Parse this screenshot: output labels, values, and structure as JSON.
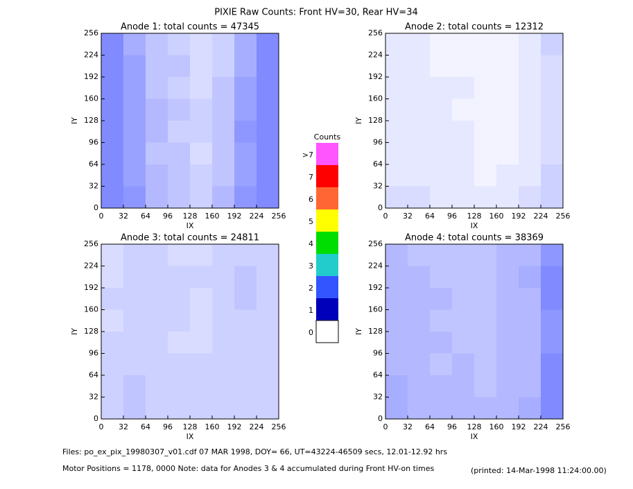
{
  "title": "PIXIE Raw Counts:  Front HV=30, Rear HV=34",
  "chart_data": [
    {
      "type": "heatmap",
      "title": "Anode 1: total counts = 47345",
      "xlabel": "IX",
      "ylabel": "IY",
      "xlim": [
        0,
        256
      ],
      "ylim": [
        0,
        256
      ],
      "xticks": [
        0,
        32,
        64,
        96,
        128,
        160,
        192,
        224,
        256
      ],
      "yticks": [
        0,
        32,
        64,
        96,
        128,
        160,
        192,
        224,
        256
      ],
      "color": "#1a2cff",
      "grid": [
        [
          1.3,
          0.9,
          0.6,
          0.5,
          0.4,
          0.6,
          0.9,
          1.2
        ],
        [
          1.3,
          0.8,
          0.6,
          0.5,
          0.4,
          0.5,
          0.8,
          1.3
        ],
        [
          1.2,
          0.8,
          0.5,
          0.5,
          0.3,
          0.5,
          0.8,
          1.2
        ],
        [
          1.3,
          0.8,
          0.6,
          0.4,
          0.4,
          0.5,
          0.9,
          1.3
        ],
        [
          1.2,
          0.8,
          0.6,
          0.5,
          0.4,
          0.5,
          0.8,
          1.2
        ],
        [
          1.3,
          0.8,
          0.5,
          0.4,
          0.3,
          0.5,
          0.8,
          1.2
        ],
        [
          1.2,
          0.8,
          0.5,
          0.5,
          0.3,
          0.4,
          0.7,
          1.3
        ],
        [
          1.2,
          0.7,
          0.5,
          0.4,
          0.3,
          0.4,
          0.7,
          1.2
        ]
      ]
    },
    {
      "type": "heatmap",
      "title": "Anode 2: total counts = 12312",
      "xlabel": "IX",
      "ylabel": "IY",
      "xlim": [
        0,
        256
      ],
      "ylim": [
        0,
        256
      ],
      "xticks": [
        0,
        32,
        64,
        96,
        128,
        160,
        192,
        224,
        256
      ],
      "yticks": [
        0,
        32,
        64,
        96,
        128,
        160,
        192,
        224,
        256
      ],
      "color": "#1a2cff",
      "grid": [
        [
          0.3,
          0.3,
          0.2,
          0.2,
          0.2,
          0.2,
          0.3,
          0.4
        ],
        [
          0.2,
          0.2,
          0.2,
          0.2,
          0.1,
          0.2,
          0.2,
          0.4
        ],
        [
          0.2,
          0.2,
          0.2,
          0.2,
          0.1,
          0.1,
          0.2,
          0.3
        ],
        [
          0.2,
          0.2,
          0.2,
          0.2,
          0.1,
          0.1,
          0.2,
          0.3
        ],
        [
          0.2,
          0.2,
          0.2,
          0.1,
          0.1,
          0.1,
          0.2,
          0.3
        ],
        [
          0.2,
          0.2,
          0.2,
          0.2,
          0.1,
          0.1,
          0.2,
          0.3
        ],
        [
          0.2,
          0.2,
          0.1,
          0.1,
          0.1,
          0.1,
          0.2,
          0.3
        ],
        [
          0.2,
          0.2,
          0.1,
          0.1,
          0.1,
          0.1,
          0.2,
          0.4
        ]
      ]
    },
    {
      "type": "heatmap",
      "title": "Anode 3: total counts = 24811",
      "xlabel": "IX",
      "ylabel": "IY",
      "xlim": [
        0,
        256
      ],
      "ylim": [
        0,
        256
      ],
      "xticks": [
        0,
        32,
        64,
        96,
        128,
        160,
        192,
        224,
        256
      ],
      "yticks": [
        0,
        32,
        64,
        96,
        128,
        160,
        192,
        224,
        256
      ],
      "color": "#1a2cff",
      "grid": [
        [
          0.4,
          0.5,
          0.4,
          0.4,
          0.4,
          0.4,
          0.4,
          0.4
        ],
        [
          0.4,
          0.5,
          0.4,
          0.4,
          0.4,
          0.4,
          0.4,
          0.4
        ],
        [
          0.4,
          0.4,
          0.4,
          0.4,
          0.4,
          0.4,
          0.4,
          0.4
        ],
        [
          0.4,
          0.4,
          0.4,
          0.3,
          0.3,
          0.4,
          0.4,
          0.4
        ],
        [
          0.3,
          0.4,
          0.4,
          0.4,
          0.3,
          0.4,
          0.4,
          0.4
        ],
        [
          0.4,
          0.4,
          0.4,
          0.4,
          0.3,
          0.4,
          0.5,
          0.4
        ],
        [
          0.3,
          0.4,
          0.4,
          0.4,
          0.4,
          0.4,
          0.5,
          0.4
        ],
        [
          0.3,
          0.4,
          0.4,
          0.3,
          0.3,
          0.4,
          0.4,
          0.4
        ]
      ]
    },
    {
      "type": "heatmap",
      "title": "Anode 4: total counts = 38369",
      "xlabel": "IX",
      "ylabel": "IY",
      "xlim": [
        0,
        256
      ],
      "ylim": [
        0,
        256
      ],
      "xticks": [
        0,
        32,
        64,
        96,
        128,
        160,
        192,
        224,
        256
      ],
      "yticks": [
        0,
        32,
        64,
        96,
        128,
        160,
        192,
        224,
        256
      ],
      "color": "#1a2cff",
      "grid": [
        [
          0.7,
          0.6,
          0.6,
          0.6,
          0.6,
          0.6,
          0.7,
          1.0
        ],
        [
          0.7,
          0.6,
          0.6,
          0.6,
          0.5,
          0.6,
          0.6,
          1.0
        ],
        [
          0.6,
          0.6,
          0.5,
          0.6,
          0.5,
          0.6,
          0.6,
          1.0
        ],
        [
          0.6,
          0.6,
          0.6,
          0.5,
          0.5,
          0.6,
          0.6,
          0.9
        ],
        [
          0.6,
          0.6,
          0.5,
          0.5,
          0.5,
          0.6,
          0.6,
          0.9
        ],
        [
          0.6,
          0.6,
          0.6,
          0.5,
          0.5,
          0.6,
          0.6,
          1.0
        ],
        [
          0.6,
          0.6,
          0.5,
          0.5,
          0.5,
          0.6,
          0.7,
          1.0
        ],
        [
          0.6,
          0.5,
          0.5,
          0.5,
          0.5,
          0.6,
          0.6,
          0.9
        ]
      ]
    }
  ],
  "colorbar": {
    "title": "Counts",
    "levels": [
      {
        "label": ">7",
        "color": "#ff55ff"
      },
      {
        "label": "7",
        "color": "#ff0000"
      },
      {
        "label": "6",
        "color": "#ff6633"
      },
      {
        "label": "5",
        "color": "#ffff00"
      },
      {
        "label": "4",
        "color": "#00dd00"
      },
      {
        "label": "3",
        "color": "#22cccc"
      },
      {
        "label": "2",
        "color": "#3355ff"
      },
      {
        "label": "1",
        "color": "#0000bb"
      },
      {
        "label": "0",
        "color": "#ffffff"
      }
    ]
  },
  "footer": {
    "files": "Files: po_ex_pix_19980307_v01.cdf    07 MAR 1998, DOY= 66, UT=43224-46509 secs, 12.01-12.92 hrs",
    "motor": "Motor Positions = 1178, 0000   Note: data for Anodes 3 & 4 accumulated during Front HV-on times",
    "printed": "(printed: 14-Mar-1998 11:24:00.00)"
  }
}
